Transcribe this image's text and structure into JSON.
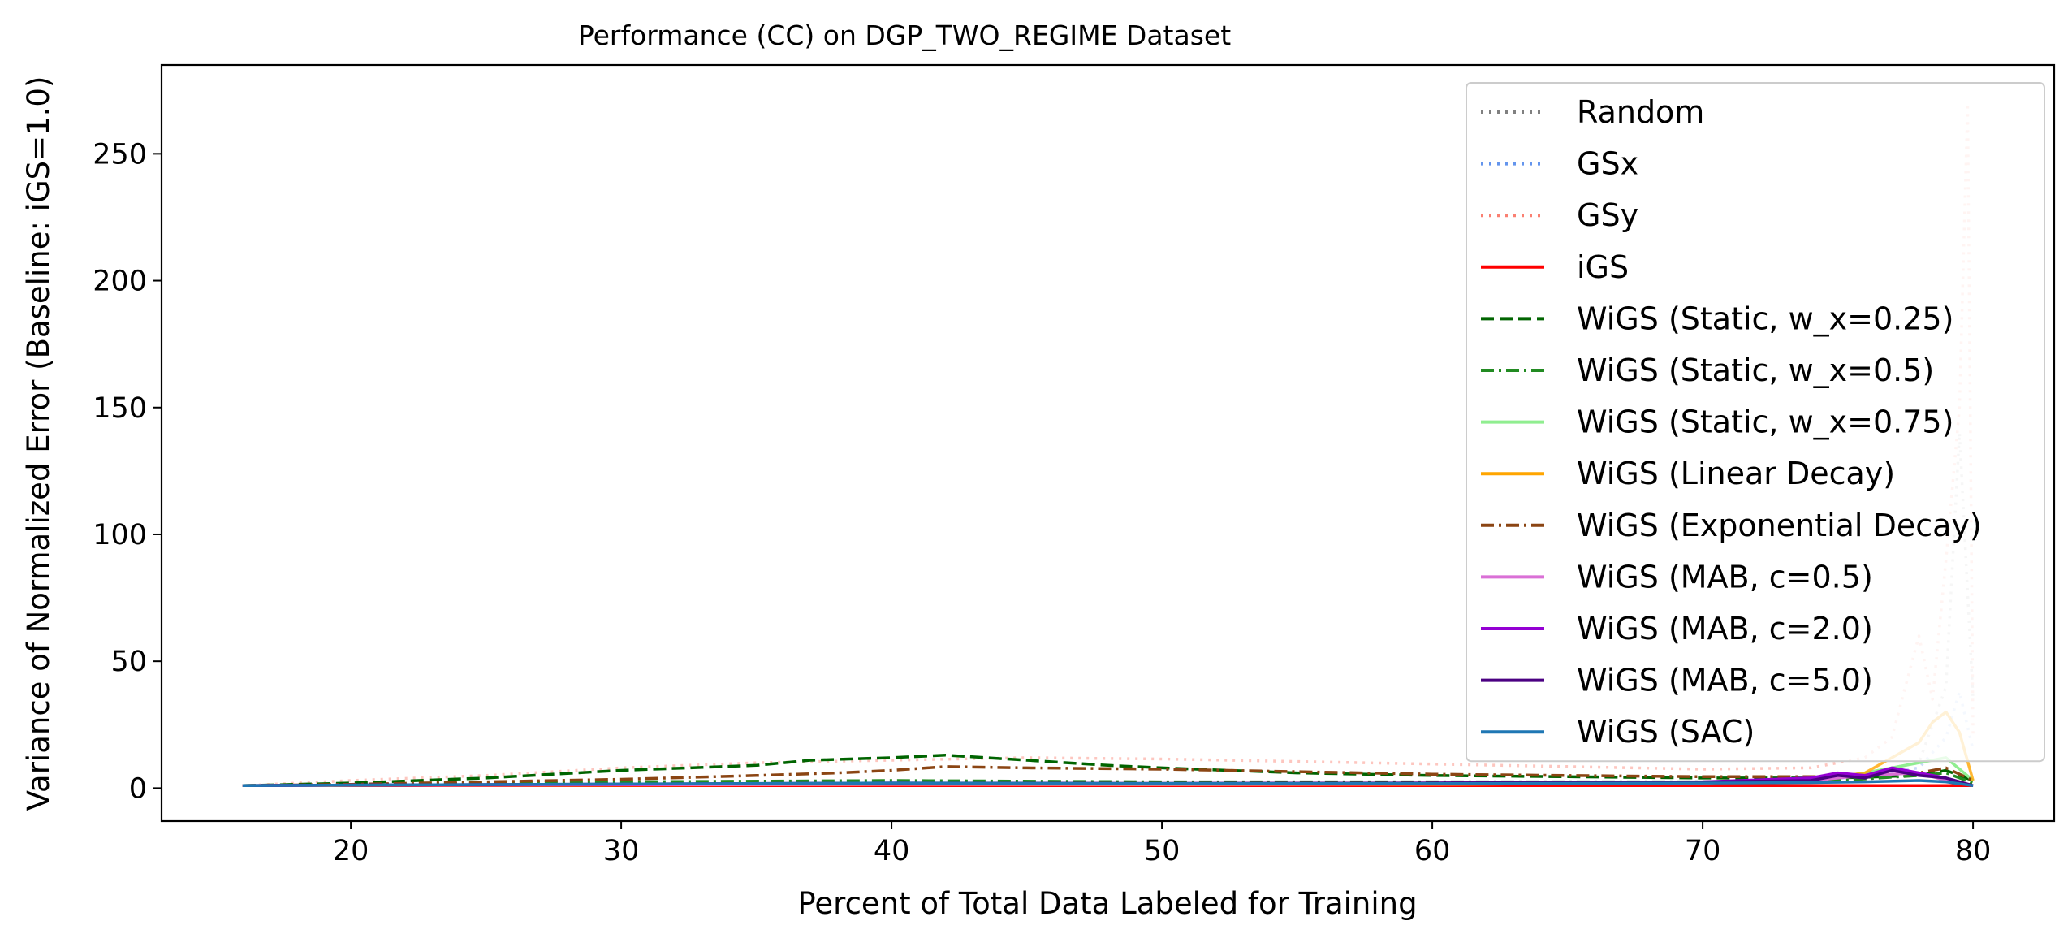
{
  "chart_data": {
    "type": "line",
    "title": "Performance (CC) on DGP_TWO_REGIME Dataset",
    "xlabel": "Percent of Total Data Labeled for Training",
    "ylabel": "Variance of Normalized Error (Baseline: iGS=1.0)",
    "xlim": [
      13,
      83
    ],
    "ylim": [
      -13,
      285
    ],
    "xticks": [
      20,
      30,
      40,
      50,
      60,
      70,
      80
    ],
    "yticks": [
      0,
      50,
      100,
      150,
      200,
      250
    ],
    "grid": false,
    "legend_position": "upper right",
    "series": [
      {
        "name": "Random",
        "color": "#808080",
        "style": "dotted",
        "alpha": 0.35,
        "x": [
          16,
          20,
          30,
          40,
          50,
          60,
          70,
          74,
          76,
          78,
          79,
          79.5,
          80
        ],
        "y": [
          1.0,
          1.2,
          1.5,
          1.8,
          1.6,
          1.7,
          2.0,
          3,
          6,
          10,
          40,
          140,
          35
        ]
      },
      {
        "name": "GSx",
        "color": "#6495ED",
        "style": "dotted",
        "alpha": 0.35,
        "x": [
          16,
          20,
          30,
          40,
          50,
          60,
          70,
          74,
          76,
          78,
          79,
          79.5,
          80
        ],
        "y": [
          1.0,
          1.1,
          1.3,
          1.5,
          1.4,
          1.5,
          1.8,
          2.5,
          5,
          8,
          20,
          38,
          15
        ]
      },
      {
        "name": "GSy",
        "color": "#FA8072",
        "style": "dotted",
        "alpha": 0.45,
        "x": [
          16,
          20,
          25,
          30,
          35,
          40,
          45,
          50,
          55,
          60,
          65,
          70,
          74,
          76,
          77,
          78,
          78.5,
          79,
          79.5,
          79.8,
          80
        ],
        "y": [
          1.0,
          3,
          5,
          8,
          10,
          11,
          12,
          11.5,
          10.5,
          9.5,
          8.5,
          7.5,
          8,
          12,
          20,
          60,
          35,
          90,
          150,
          270,
          20
        ]
      },
      {
        "name": "iGS",
        "color": "#FF0000",
        "style": "solid",
        "alpha": 1.0,
        "x": [
          16,
          20,
          30,
          40,
          50,
          60,
          70,
          74,
          76,
          77,
          78,
          79,
          80
        ],
        "y": [
          1,
          1,
          1,
          1,
          1,
          1,
          1,
          1,
          1,
          1,
          1,
          1,
          1
        ]
      },
      {
        "name": "WiGS (Static, w_x=0.25)",
        "color": "#006400",
        "style": "dashed",
        "alpha": 1.0,
        "x": [
          16,
          20,
          25,
          30,
          35,
          37,
          40,
          42,
          45,
          48,
          50,
          55,
          60,
          65,
          70,
          75,
          78,
          79,
          80
        ],
        "y": [
          1.0,
          2,
          4,
          7,
          9,
          11,
          12,
          13,
          11,
          9,
          8,
          6,
          5,
          4.5,
          4,
          4,
          5,
          7,
          3
        ]
      },
      {
        "name": "WiGS (Static, w_x=0.5)",
        "color": "#228B22",
        "style": "dashdot",
        "alpha": 1.0,
        "x": [
          16,
          20,
          30,
          40,
          50,
          60,
          70,
          75,
          78,
          79,
          80
        ],
        "y": [
          1.0,
          1.3,
          2.5,
          3,
          2.5,
          2.5,
          2.5,
          3,
          5,
          6,
          2
        ]
      },
      {
        "name": "WiGS (Static, w_x=0.75)",
        "color": "#90EE90",
        "style": "solid",
        "alpha": 1.0,
        "x": [
          16,
          20,
          30,
          40,
          50,
          60,
          70,
          74,
          76,
          78,
          79,
          80
        ],
        "y": [
          1.0,
          1.1,
          1.3,
          1.5,
          1.4,
          1.5,
          2,
          3,
          6,
          10,
          12,
          3
        ]
      },
      {
        "name": "WiGS (Linear Decay)",
        "color": "#FFA500",
        "style": "solid",
        "alpha": 0.8,
        "x": [
          16,
          20,
          30,
          40,
          50,
          60,
          70,
          74,
          76,
          77,
          78,
          78.5,
          79,
          79.5,
          80
        ],
        "y": [
          1.0,
          1.1,
          1.2,
          1.4,
          1.4,
          1.5,
          2,
          3,
          6,
          12,
          18,
          26,
          30,
          22,
          3
        ]
      },
      {
        "name": "WiGS (Exponential Decay)",
        "color": "#8B4513",
        "style": "dashdot",
        "alpha": 1.0,
        "x": [
          16,
          20,
          25,
          30,
          35,
          38,
          40,
          42,
          45,
          50,
          55,
          60,
          65,
          70,
          75,
          78,
          79,
          80
        ],
        "y": [
          1.0,
          1.5,
          2.5,
          3.5,
          5,
          6,
          7,
          8.5,
          8,
          7.5,
          6.5,
          5.5,
          5,
          4.5,
          4.5,
          6,
          8,
          3
        ]
      },
      {
        "name": "WiGS (MAB, c=0.5)",
        "color": "#DA70D6",
        "style": "solid",
        "alpha": 1.0,
        "x": [
          16,
          20,
          30,
          40,
          50,
          60,
          70,
          74,
          76,
          78,
          79,
          80
        ],
        "y": [
          1.0,
          1.1,
          1.3,
          1.5,
          1.5,
          1.6,
          2,
          3,
          5,
          6,
          3,
          1
        ]
      },
      {
        "name": "WiGS (MAB, c=2.0)",
        "color": "#9400D3",
        "style": "solid",
        "alpha": 1.0,
        "x": [
          16,
          20,
          30,
          40,
          50,
          60,
          70,
          74,
          75,
          76,
          77,
          78,
          79,
          80
        ],
        "y": [
          1.0,
          1.2,
          1.5,
          2,
          1.8,
          2,
          2.5,
          4,
          6,
          5,
          8,
          6,
          4,
          1
        ]
      },
      {
        "name": "WiGS (MAB, c=5.0)",
        "color": "#4B0082",
        "style": "solid",
        "alpha": 1.0,
        "x": [
          16,
          20,
          30,
          40,
          50,
          60,
          70,
          74,
          75,
          76,
          77,
          78,
          79,
          80
        ],
        "y": [
          1.0,
          1.2,
          1.6,
          2,
          1.9,
          2,
          2.5,
          3,
          5,
          4,
          7,
          5,
          4,
          1
        ]
      },
      {
        "name": "WiGS (SAC)",
        "color": "#1F77B4",
        "style": "solid",
        "alpha": 1.0,
        "x": [
          16,
          20,
          30,
          40,
          50,
          60,
          70,
          74,
          76,
          78,
          79,
          80
        ],
        "y": [
          1.0,
          1.2,
          1.6,
          2,
          1.8,
          1.8,
          2.0,
          2.2,
          2.5,
          3,
          2.5,
          1
        ]
      }
    ]
  }
}
